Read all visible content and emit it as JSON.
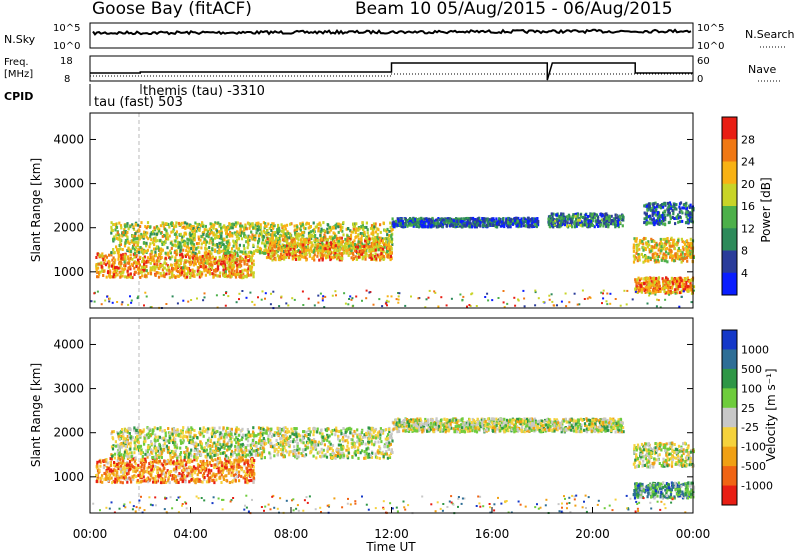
{
  "header": {
    "station": "Goose Bay (fitACF)",
    "beam_info": "Beam 10 05/Aug/2015 - 06/Aug/2015"
  },
  "panels": {
    "nsky": {
      "label": "N.Sky",
      "ticks": [
        "10^5",
        "10^0"
      ],
      "right_label": "N.Search",
      "right_ticks": [
        "10^5",
        "10^0"
      ]
    },
    "freq": {
      "label": "Freq.",
      "unit": "[MHz]",
      "ticks": [
        "18",
        "8"
      ],
      "right_label": "Nave",
      "right_ticks": [
        "60",
        "0"
      ]
    },
    "cpid": {
      "label": "CPID",
      "modes": [
        "tau (fast) 503",
        "themis (tau) -3310"
      ]
    }
  },
  "chart_data": [
    {
      "type": "heatmap",
      "name": "power",
      "xlabel": "",
      "ylabel": "Slant Range [km]",
      "yticks": [
        "1000",
        "2000",
        "3000",
        "4000"
      ],
      "ylim": [
        180,
        4600
      ],
      "colorbar": {
        "label": "Power [dB]",
        "ticks": [
          "4",
          "8",
          "12",
          "16",
          "20",
          "24",
          "28"
        ],
        "colors": [
          "#0a1eff",
          "#2a3c9a",
          "#2d8a5a",
          "#4db04a",
          "#c8d428",
          "#f8b214",
          "#f07814",
          "#e81e14"
        ]
      },
      "bands": [
        {
          "x0": 0.2,
          "x1": 6.5,
          "y0": 900,
          "y1": 1450,
          "level": 0.72
        },
        {
          "x0": 0.8,
          "x1": 12.0,
          "y0": 1450,
          "y1": 2150,
          "level": 0.55
        },
        {
          "x0": 7.0,
          "x1": 12.0,
          "y0": 1300,
          "y1": 1800,
          "level": 0.7
        },
        {
          "x0": 12.0,
          "x1": 17.8,
          "y0": 2050,
          "y1": 2250,
          "level": 0.2
        },
        {
          "x0": 18.2,
          "x1": 21.2,
          "y0": 2050,
          "y1": 2350,
          "level": 0.3
        },
        {
          "x0": 21.6,
          "x1": 24.0,
          "y0": 1250,
          "y1": 1800,
          "level": 0.65
        },
        {
          "x0": 21.6,
          "x1": 24.0,
          "y0": 550,
          "y1": 900,
          "level": 0.75
        },
        {
          "x0": 22.0,
          "x1": 24.0,
          "y0": 2100,
          "y1": 2600,
          "level": 0.25
        }
      ]
    },
    {
      "type": "heatmap",
      "name": "velocity",
      "xlabel": "Time UT",
      "ylabel": "Slant Range [km]",
      "xticks": [
        "00:00",
        "04:00",
        "08:00",
        "12:00",
        "16:00",
        "20:00",
        "00:00"
      ],
      "yticks": [
        "1000",
        "2000",
        "3000",
        "4000"
      ],
      "ylim": [
        180,
        4600
      ],
      "colorbar": {
        "label": "Velocity [m s⁻¹]",
        "ticks": [
          "1000",
          "500",
          "100",
          "25",
          "-25",
          "-100",
          "-500",
          "-1000"
        ],
        "colors": [
          "#1438c8",
          "#2e6e96",
          "#2e9646",
          "#6ecc3c",
          "#c8c8c8",
          "#f5d23c",
          "#f0a014",
          "#f06414",
          "#e81e14"
        ]
      },
      "bands": [
        {
          "x0": 0.2,
          "x1": 6.5,
          "y0": 900,
          "y1": 1450,
          "level": 0.75
        },
        {
          "x0": 0.8,
          "x1": 12.0,
          "y0": 1450,
          "y1": 2150,
          "level": 0.5
        },
        {
          "x0": 12.0,
          "x1": 21.2,
          "y0": 2050,
          "y1": 2350,
          "level": 0.5
        },
        {
          "x0": 21.6,
          "x1": 24.0,
          "y0": 1250,
          "y1": 1800,
          "level": 0.5
        },
        {
          "x0": 21.6,
          "x1": 24.0,
          "y0": 550,
          "y1": 900,
          "level": 0.3
        }
      ]
    }
  ]
}
